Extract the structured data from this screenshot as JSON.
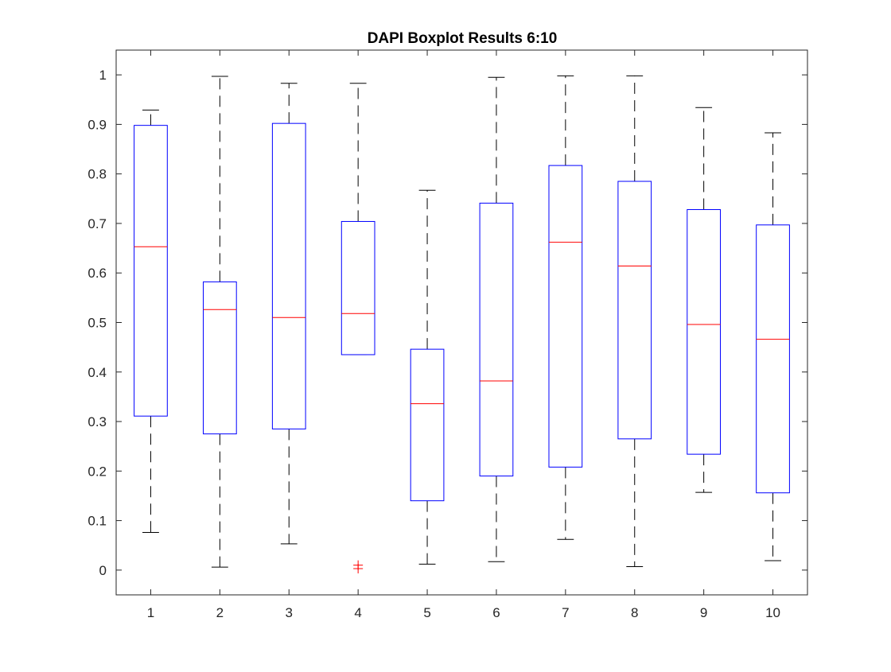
{
  "chart_data": {
    "type": "boxplot",
    "title": "DAPI Boxplot Results 6:10",
    "xlabel": "",
    "ylabel": "",
    "categories": [
      "1",
      "2",
      "3",
      "4",
      "5",
      "6",
      "7",
      "8",
      "9",
      "10"
    ],
    "xlim": [
      0.5,
      10.5
    ],
    "ylim": [
      -0.05,
      1.05
    ],
    "yticks": [
      0,
      0.1,
      0.2,
      0.3,
      0.4,
      0.5,
      0.6,
      0.7,
      0.8,
      0.9,
      1
    ],
    "ytick_labels": [
      "0",
      "0.1",
      "0.2",
      "0.3",
      "0.4",
      "0.5",
      "0.6",
      "0.7",
      "0.8",
      "0.9",
      "1"
    ],
    "grid": false,
    "boxes": [
      {
        "label": "1",
        "whisker_low": 0.076,
        "q1": 0.311,
        "median": 0.653,
        "q3": 0.898,
        "whisker_high": 0.929,
        "outliers": []
      },
      {
        "label": "2",
        "whisker_low": 0.006,
        "q1": 0.275,
        "median": 0.526,
        "q3": 0.582,
        "whisker_high": 0.997,
        "outliers": []
      },
      {
        "label": "3",
        "whisker_low": 0.053,
        "q1": 0.285,
        "median": 0.51,
        "q3": 0.902,
        "whisker_high": 0.983,
        "outliers": []
      },
      {
        "label": "4",
        "whisker_low": 0.435,
        "q1": 0.435,
        "median": 0.518,
        "q3": 0.704,
        "whisker_high": 0.983,
        "outliers": [
          0.003,
          0.01
        ]
      },
      {
        "label": "5",
        "whisker_low": 0.012,
        "q1": 0.14,
        "median": 0.336,
        "q3": 0.446,
        "whisker_high": 0.767,
        "outliers": []
      },
      {
        "label": "6",
        "whisker_low": 0.017,
        "q1": 0.19,
        "median": 0.382,
        "q3": 0.741,
        "whisker_high": 0.995,
        "outliers": []
      },
      {
        "label": "7",
        "whisker_low": 0.062,
        "q1": 0.208,
        "median": 0.662,
        "q3": 0.817,
        "whisker_high": 0.998,
        "outliers": []
      },
      {
        "label": "8",
        "whisker_low": 0.007,
        "q1": 0.265,
        "median": 0.614,
        "q3": 0.785,
        "whisker_high": 0.998,
        "outliers": []
      },
      {
        "label": "9",
        "whisker_low": 0.157,
        "q1": 0.234,
        "median": 0.496,
        "q3": 0.728,
        "whisker_high": 0.934,
        "outliers": []
      },
      {
        "label": "10",
        "whisker_low": 0.019,
        "q1": 0.156,
        "median": 0.466,
        "q3": 0.697,
        "whisker_high": 0.883,
        "outliers": []
      }
    ],
    "colors": {
      "box": "#0000ff",
      "median": "#ff0000",
      "whisker": "#000000",
      "outlier": "#ff0000",
      "axes": "#262626"
    }
  }
}
